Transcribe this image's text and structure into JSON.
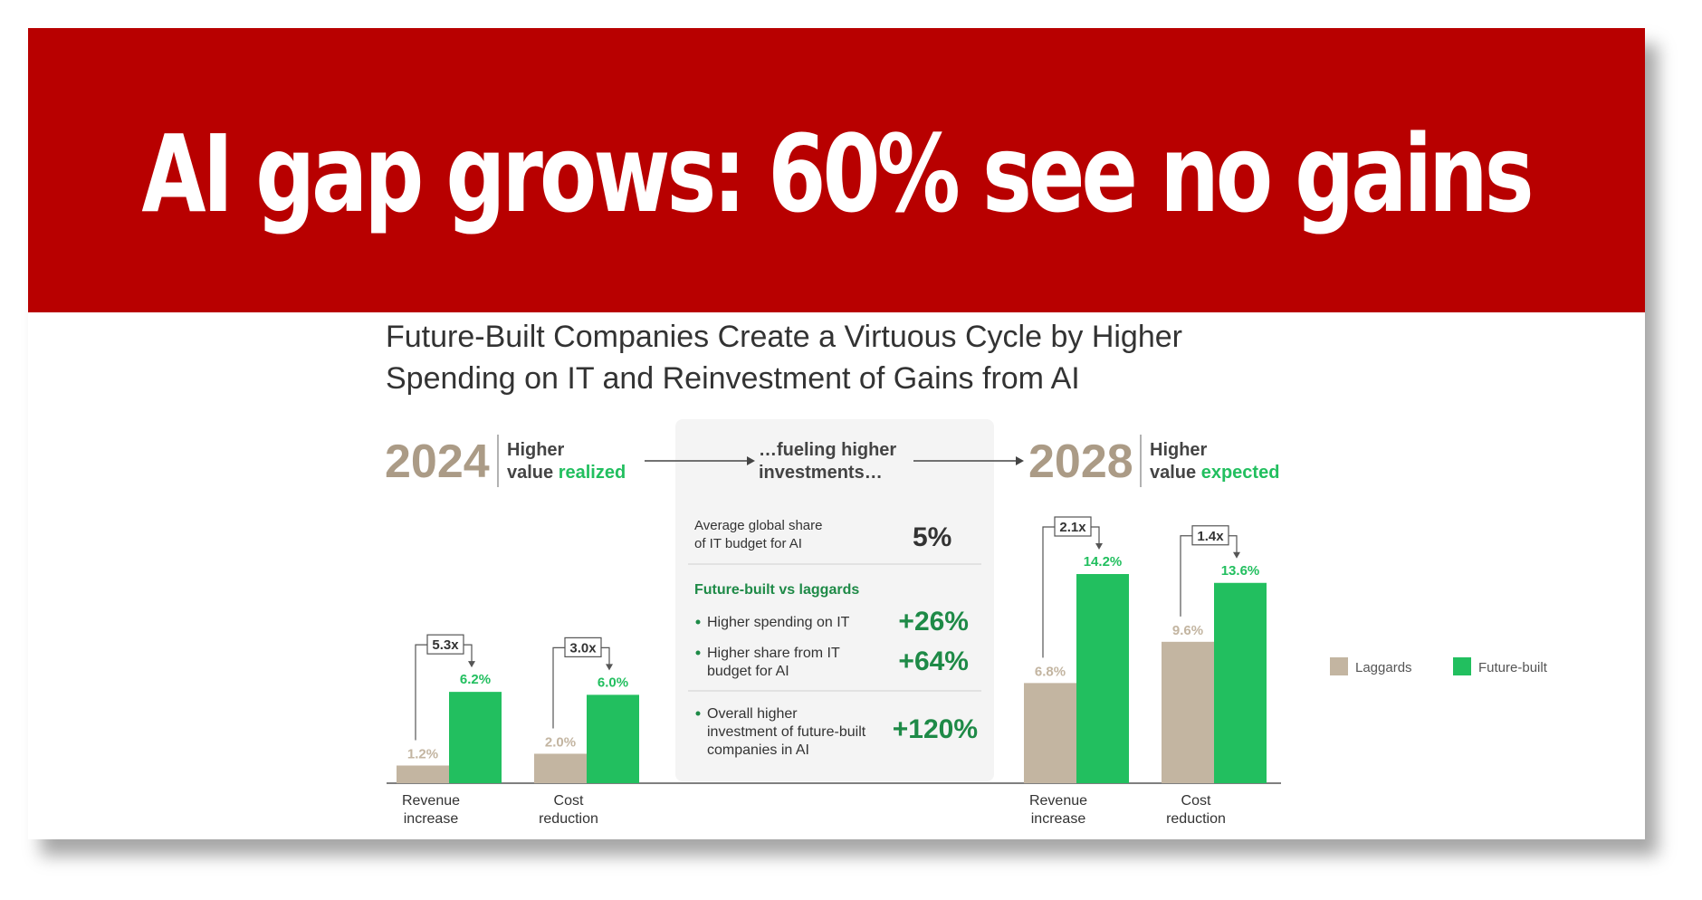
{
  "banner": {
    "headline": "AI gap grows: 60% see no gains"
  },
  "colors": {
    "banner": "#b80000",
    "laggards": "#c3b5a1",
    "future_built": "#22bf5f",
    "year": "#ab9b86",
    "panel": "#f4f4f4"
  },
  "chart_data": {
    "type": "bar",
    "title": "Future-Built Companies Create a Virtuous Cycle by Higher Spending on IT and Reinvestment of Gains from AI",
    "legend": [
      "Laggards",
      "Future-built"
    ],
    "legend_position": "right",
    "panels": [
      {
        "year": "2024",
        "caption_a": "Higher",
        "caption_b": "value ",
        "caption_accent": "realized",
        "categories": [
          "Revenue\nincrease",
          "Cost\nreduction"
        ],
        "series": [
          {
            "name": "Laggards",
            "values": [
              1.2,
              2.0
            ],
            "labels": [
              "1.2%",
              "2.0%"
            ]
          },
          {
            "name": "Future-built",
            "values": [
              6.2,
              6.0
            ],
            "labels": [
              "6.2%",
              "6.0%"
            ]
          }
        ],
        "multipliers": [
          "5.3x",
          "3.0x"
        ]
      },
      {
        "year": "2028",
        "caption_a": "Higher",
        "caption_b": "value ",
        "caption_accent": "expected",
        "categories": [
          "Revenue\nincrease",
          "Cost\nreduction"
        ],
        "series": [
          {
            "name": "Laggards",
            "values": [
              6.8,
              9.6
            ],
            "labels": [
              "6.8%",
              "9.6%"
            ]
          },
          {
            "name": "Future-built",
            "values": [
              14.2,
              13.6
            ],
            "labels": [
              "14.2%",
              "13.6%"
            ]
          }
        ],
        "multipliers": [
          "2.1x",
          "1.4x"
        ]
      }
    ],
    "middle": {
      "heading": "…fueling higher\ninvestments…",
      "avg_label": "Average global share\nof IT budget for AI",
      "avg_value": "5%",
      "section_title": "Future-built vs laggards",
      "items": [
        {
          "label": "Higher spending on IT",
          "value": "+26%"
        },
        {
          "label": "Higher share from IT\nbudget for AI",
          "value": "+64%"
        },
        {
          "label": "Overall higher\ninvestment of future-built\ncompanies in AI",
          "value": "+120%"
        }
      ]
    }
  }
}
